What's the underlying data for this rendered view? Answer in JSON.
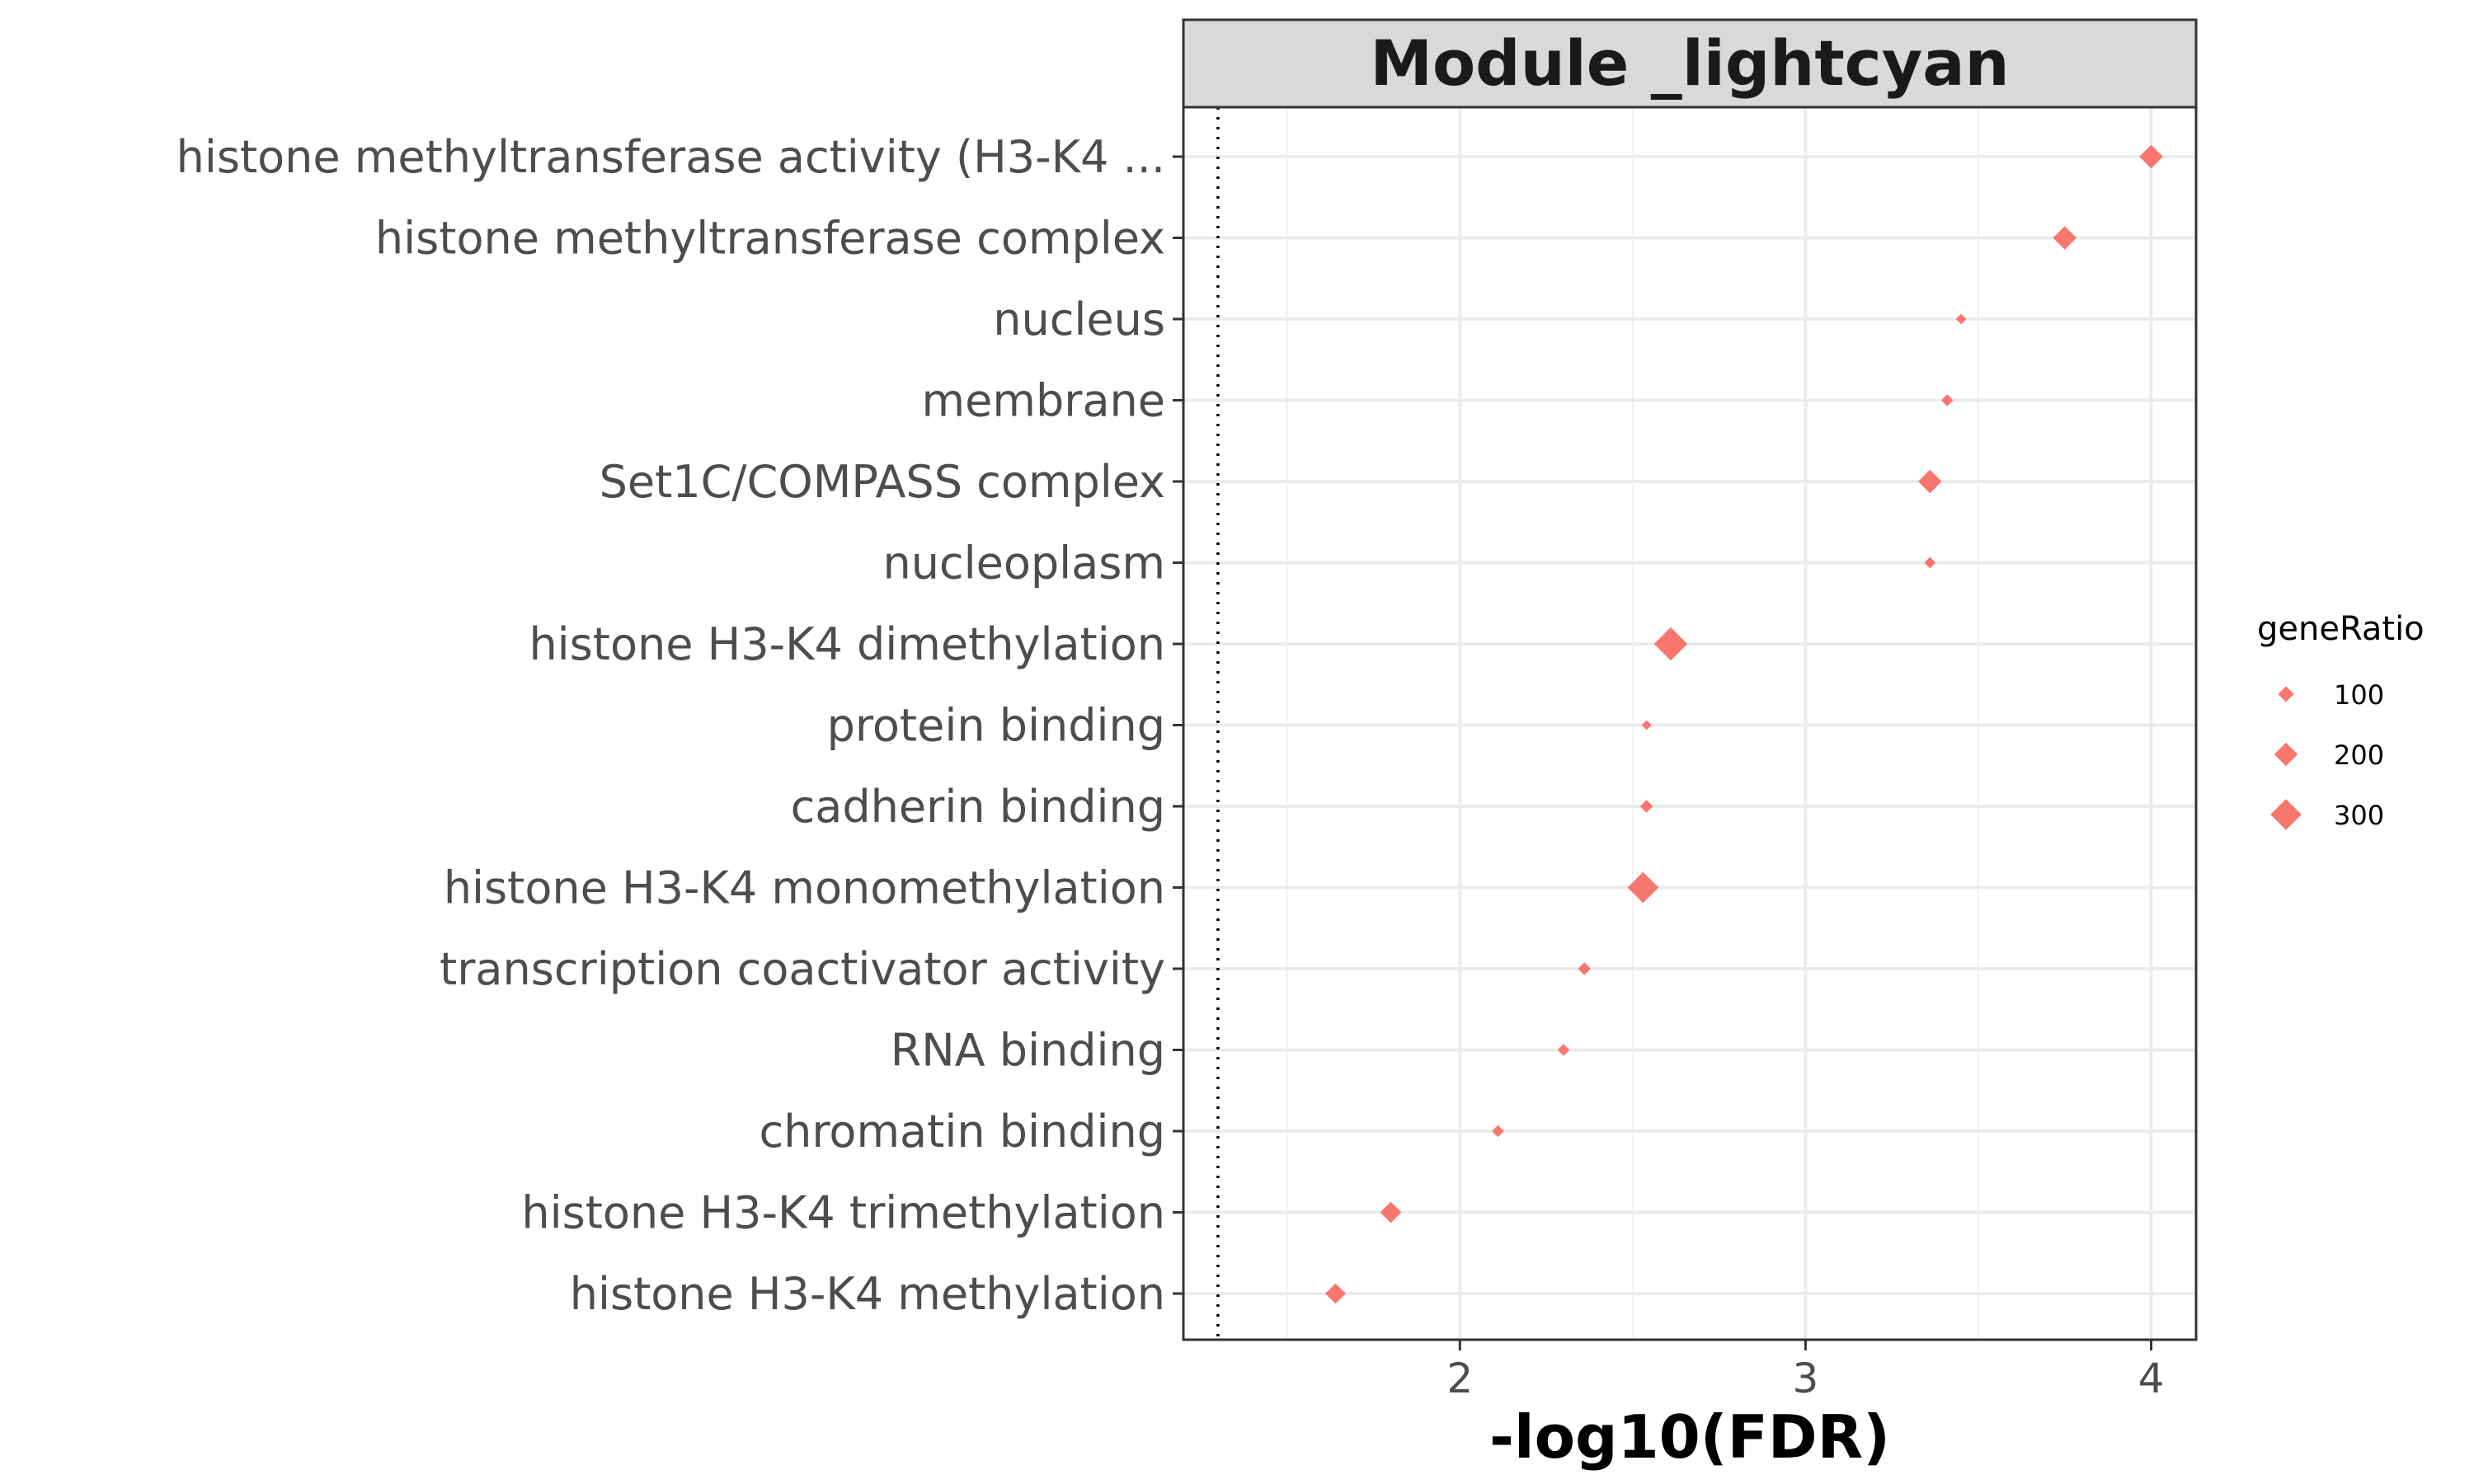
{
  "chart_data": {
    "type": "scatter",
    "facet_title": "Module _lightcyan",
    "xlabel": "-log10(FDR)",
    "ylabel": "",
    "xlim": [
      1.2,
      4.13
    ],
    "x_ticks": [
      "2",
      "3",
      "4"
    ],
    "x_tick_values": [
      2,
      3,
      4
    ],
    "threshold_line_x": 1.3,
    "threshold_line_style": "dotted",
    "grid": true,
    "marker": "diamond",
    "color": "#F8766D",
    "categories": [
      "histone methyltransferase activity (H3-K4 ...",
      "histone methyltransferase complex",
      "nucleus",
      "membrane",
      "Set1C/COMPASS complex",
      "nucleoplasm",
      "histone H3-K4 dimethylation",
      "protein binding",
      "cadherin binding",
      "histone H3-K4 monomethylation",
      "transcription coactivator activity",
      "RNA binding",
      "chromatin binding",
      "histone H3-K4 trimethylation",
      "histone H3-K4 methylation"
    ],
    "x": [
      4.0,
      3.75,
      3.45,
      3.41,
      3.36,
      3.36,
      2.61,
      2.54,
      2.54,
      2.53,
      2.36,
      2.3,
      2.11,
      1.8,
      1.64
    ],
    "geneRatio": [
      200,
      200,
      30,
      50,
      200,
      40,
      330,
      20,
      60,
      300,
      60,
      50,
      50,
      170,
      160
    ],
    "legend": {
      "title": "geneRatio",
      "labels": [
        "100",
        "200",
        "300"
      ],
      "values": [
        100,
        200,
        300
      ],
      "position": "right"
    }
  }
}
